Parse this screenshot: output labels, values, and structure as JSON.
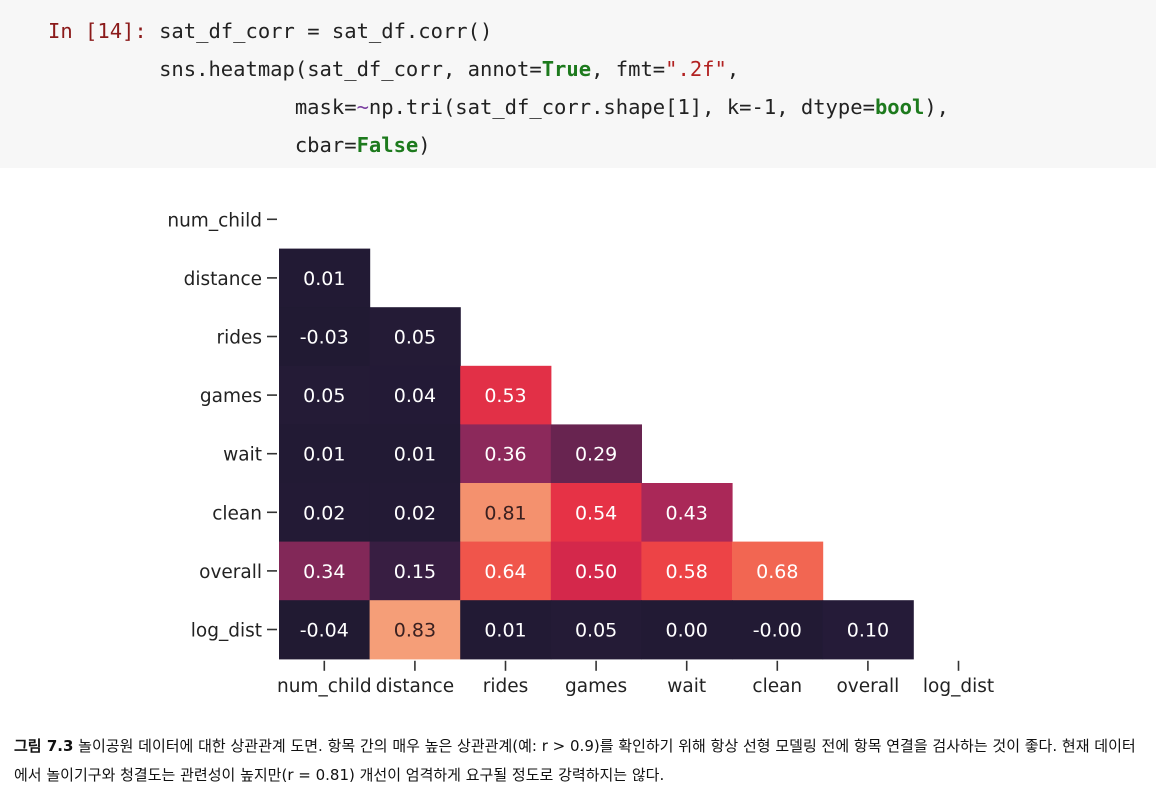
{
  "code": {
    "prompt": "In [14]:",
    "line1": "sat_df_corr = sat_df.corr()",
    "line2_a": "sns.heatmap(sat_df_corr, annot=",
    "line2_true": "True",
    "line2_b": ", fmt=",
    "line2_fmt": "\".2f\"",
    "line2_c": ",",
    "line3_a": "mask=",
    "line3_op": "~",
    "line3_b": "np.tri(sat_df_corr.shape[1], k=-1, dtype=",
    "line3_bool": "bool",
    "line3_c": "),",
    "line4_a": "cbar=",
    "line4_false": "False",
    "line4_b": ")"
  },
  "chart_data": {
    "type": "heatmap",
    "variables": [
      "num_child",
      "distance",
      "rides",
      "games",
      "wait",
      "clean",
      "overall",
      "log_dist"
    ],
    "lower_triangle": [
      [],
      [
        0.01
      ],
      [
        -0.03,
        0.05
      ],
      [
        0.05,
        0.04,
        0.53
      ],
      [
        0.01,
        0.01,
        0.36,
        0.29
      ],
      [
        0.02,
        0.02,
        0.81,
        0.54,
        0.43
      ],
      [
        0.34,
        0.15,
        0.64,
        0.5,
        0.58,
        0.68
      ],
      [
        -0.04,
        0.83,
        0.01,
        0.05,
        0.0,
        -0.0,
        0.1
      ]
    ],
    "labels": [
      [],
      [
        "0.01"
      ],
      [
        "-0.03",
        "0.05"
      ],
      [
        "0.05",
        "0.04",
        "0.53"
      ],
      [
        "0.01",
        "0.01",
        "0.36",
        "0.29"
      ],
      [
        "0.02",
        "0.02",
        "0.81",
        "0.54",
        "0.43"
      ],
      [
        "0.34",
        "0.15",
        "0.64",
        "0.50",
        "0.58",
        "0.68"
      ],
      [
        "-0.04",
        "0.83",
        "0.01",
        "0.05",
        "0.00",
        "-0.00",
        "0.10"
      ]
    ],
    "colormap": "rocket",
    "colorbar": false,
    "annotations": true
  },
  "caption": {
    "label": "그림 7.3",
    "text": " 놀이공원 데이터에 대한 상관관계 도면. 항목 간의 매우 높은 상관관계(예: r > 0.9)를 확인하기 위해 항상 선형 모델링 전에 항목 연결을 검사하는 것이 좋다. 현재 데이터에서 놀이기구와 청결도는 관련성이 높지만(r = 0.81) 개선이 엄격하게 요구될 정도로 강력하지는 않다."
  }
}
